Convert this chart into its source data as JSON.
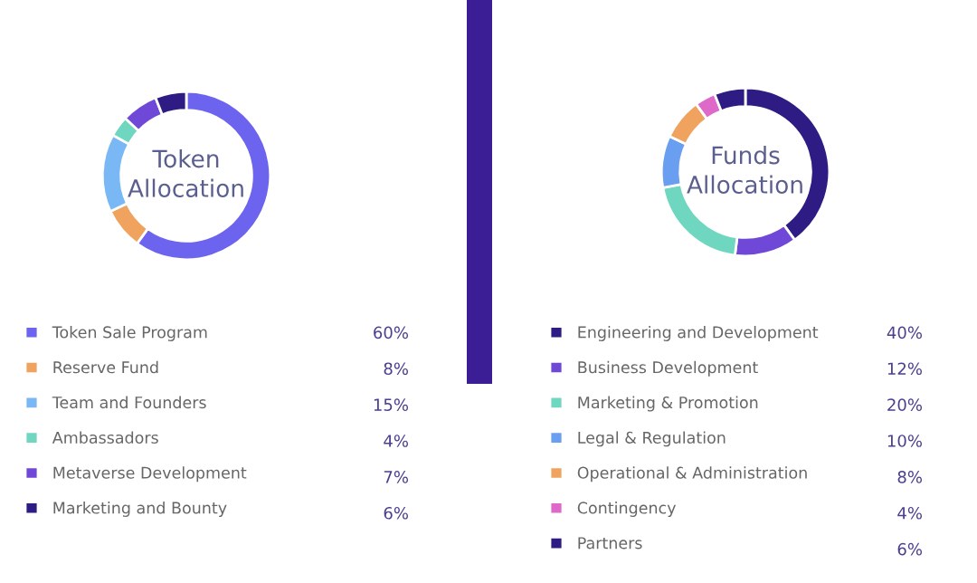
{
  "chart_data": [
    {
      "type": "donut",
      "title": "Token\nAllocation",
      "categories": [
        "Token Sale Program",
        "Reserve Fund",
        "Team and Founders",
        "Ambassadors",
        "Metaverse Development",
        "Marketing and Bounty"
      ],
      "values": [
        60,
        8,
        15,
        4,
        7,
        6
      ],
      "value_labels": [
        "60%",
        "8%",
        "15%",
        "4%",
        "7%",
        "6%"
      ],
      "colors": [
        "#6c63ee",
        "#f0a35e",
        "#7ab8f5",
        "#6fd6c0",
        "#7048d8",
        "#2e1b84"
      ],
      "legend": "bottom"
    },
    {
      "type": "donut",
      "title": "Funds\nAllocation",
      "categories": [
        "Engineering and Development",
        "Business Development",
        "Marketing & Promotion",
        "Legal & Regulation",
        "Operational & Administration",
        "Contingency",
        "Partners"
      ],
      "values": [
        40,
        12,
        20,
        10,
        8,
        4,
        6
      ],
      "value_labels": [
        "40%",
        "12%",
        "20%",
        "10%",
        "8%",
        "4%",
        "6%"
      ],
      "colors": [
        "#2e1b84",
        "#7048d8",
        "#6fd6c0",
        "#6a9ef0",
        "#f0a35e",
        "#de69c8",
        "#2e1b84"
      ],
      "legend": "bottom"
    }
  ]
}
